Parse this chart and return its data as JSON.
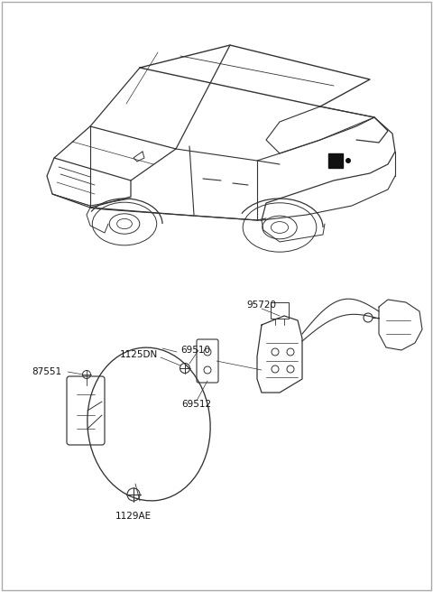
{
  "background_color": "#ffffff",
  "border_color": "#aaaaaa",
  "line_color": "#333333",
  "text_color": "#111111",
  "font_size": 7.5,
  "car_line_color": "#333333",
  "parts_line_color": "#333333"
}
